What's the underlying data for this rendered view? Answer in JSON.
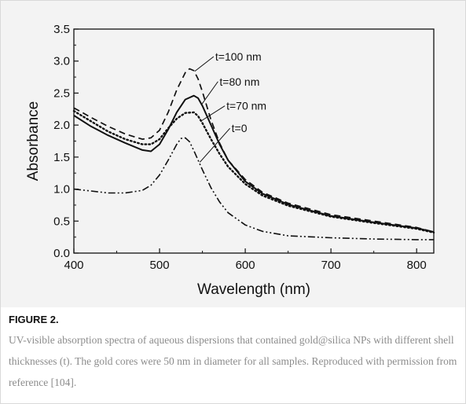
{
  "figure": {
    "label": "FIGURE 2.",
    "caption": "UV-visible absorption spectra of aqueous dispersions that contained gold@silica NPs with different shell thicknesses (t). The gold cores were 50 nm in diameter for all samples. Reproduced with permission from reference [104]."
  },
  "chart_data": {
    "type": "line",
    "xlabel": "Wavelength (nm)",
    "ylabel": "Absorbance",
    "xlim": [
      400,
      820
    ],
    "ylim": [
      0.0,
      3.5
    ],
    "xticks": [
      "400",
      "500",
      "600",
      "700",
      "800"
    ],
    "yticks": [
      "0.0",
      "0.5",
      "1.0",
      "1.5",
      "2.0",
      "2.5",
      "3.0",
      "3.5"
    ],
    "grid": false,
    "legend": "none",
    "series": [
      {
        "name": "t=100 nm",
        "style": "dashed",
        "x": [
          400,
          420,
          440,
          460,
          480,
          490,
          500,
          510,
          520,
          530,
          535,
          540,
          545,
          550,
          560,
          570,
          580,
          600,
          620,
          650,
          700,
          750,
          800,
          820
        ],
        "y": [
          2.27,
          2.12,
          1.98,
          1.86,
          1.78,
          1.8,
          1.92,
          2.2,
          2.55,
          2.82,
          2.88,
          2.85,
          2.72,
          2.52,
          2.08,
          1.72,
          1.45,
          1.15,
          0.95,
          0.78,
          0.6,
          0.5,
          0.4,
          0.33
        ]
      },
      {
        "name": "t=80 nm",
        "style": "solid",
        "x": [
          400,
          420,
          440,
          460,
          480,
          490,
          500,
          510,
          520,
          530,
          540,
          545,
          550,
          560,
          570,
          580,
          600,
          620,
          650,
          700,
          750,
          800,
          820
        ],
        "y": [
          2.15,
          1.98,
          1.84,
          1.72,
          1.61,
          1.59,
          1.7,
          1.93,
          2.2,
          2.4,
          2.46,
          2.42,
          2.3,
          2.0,
          1.7,
          1.45,
          1.12,
          0.93,
          0.76,
          0.58,
          0.48,
          0.39,
          0.33
        ]
      },
      {
        "name": "t=70 nm",
        "style": "dotted",
        "x": [
          400,
          420,
          440,
          460,
          480,
          490,
          500,
          510,
          520,
          530,
          540,
          545,
          550,
          560,
          570,
          580,
          600,
          620,
          650,
          700,
          750,
          800,
          820
        ],
        "y": [
          2.22,
          2.06,
          1.9,
          1.78,
          1.7,
          1.7,
          1.78,
          1.95,
          2.1,
          2.19,
          2.2,
          2.14,
          2.03,
          1.78,
          1.55,
          1.35,
          1.08,
          0.9,
          0.74,
          0.57,
          0.47,
          0.38,
          0.32
        ]
      },
      {
        "name": "t=0",
        "style": "dashdotdot",
        "x": [
          400,
          420,
          440,
          460,
          480,
          490,
          500,
          510,
          520,
          525,
          530,
          535,
          540,
          550,
          560,
          570,
          580,
          600,
          620,
          650,
          700,
          750,
          800,
          820
        ],
        "y": [
          1.0,
          0.97,
          0.94,
          0.94,
          0.98,
          1.06,
          1.22,
          1.45,
          1.7,
          1.79,
          1.8,
          1.74,
          1.6,
          1.3,
          1.02,
          0.8,
          0.63,
          0.44,
          0.34,
          0.27,
          0.24,
          0.22,
          0.21,
          0.21
        ]
      }
    ],
    "annotations": [
      {
        "text": "t=100 nm",
        "series": "t=100 nm",
        "x": 541,
        "y": 2.84,
        "tx": 565,
        "ty": 3.07
      },
      {
        "text": "t=80 nm",
        "series": "t=80 nm",
        "x": 549,
        "y": 2.32,
        "tx": 570,
        "ty": 2.68
      },
      {
        "text": "t=70 nm",
        "series": "t=70 nm",
        "x": 548,
        "y": 2.06,
        "tx": 578,
        "ty": 2.3
      },
      {
        "text": "t=0",
        "series": "t=0",
        "x": 547,
        "y": 1.42,
        "tx": 584,
        "ty": 1.95
      }
    ]
  }
}
